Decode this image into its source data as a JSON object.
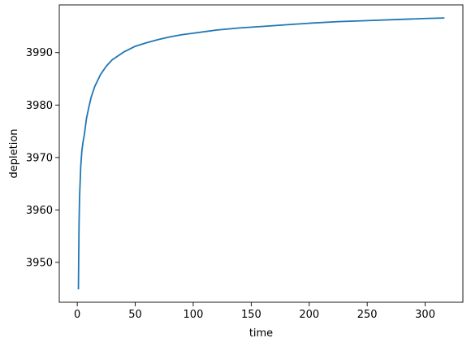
{
  "chart_data": {
    "type": "line",
    "title": "",
    "xlabel": "time",
    "ylabel": "depletion",
    "xlim": [
      -15.5,
      332.5
    ],
    "ylim": [
      3942.4,
      3999.1
    ],
    "xticks": [
      0,
      50,
      100,
      150,
      200,
      250,
      300
    ],
    "yticks": [
      3950,
      3960,
      3970,
      3980,
      3990
    ],
    "grid": false,
    "line_color": "#1f77b4",
    "series": [
      {
        "x": [
          1,
          1.5,
          2,
          3,
          4,
          5,
          6,
          8,
          10,
          12,
          15,
          20,
          25,
          30,
          40,
          50,
          60,
          70,
          80,
          90,
          100,
          120,
          140,
          160,
          180,
          200,
          225,
          250,
          275,
          300,
          316
        ],
        "y": [
          3945.0,
          3956.7,
          3962.5,
          3968.3,
          3971.3,
          3973.0,
          3974.2,
          3977.5,
          3979.6,
          3981.5,
          3983.5,
          3985.8,
          3987.4,
          3988.6,
          3990.1,
          3991.2,
          3991.9,
          3992.5,
          3993.0,
          3993.4,
          3993.7,
          3994.3,
          3994.7,
          3995.0,
          3995.3,
          3995.6,
          3995.9,
          3996.1,
          3996.3,
          3996.5,
          3996.6
        ]
      }
    ]
  }
}
